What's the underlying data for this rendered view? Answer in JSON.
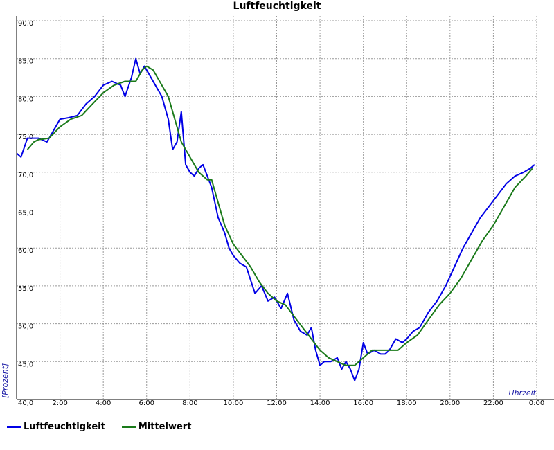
{
  "chart_data": {
    "type": "line",
    "title": "Luftfeuchtigkeit",
    "ylabel": "[Prozent]",
    "xlabel": "Uhrzeit",
    "xlim": [
      0,
      24
    ],
    "ylim": [
      40,
      90
    ],
    "yticks": [
      40,
      45,
      50,
      55,
      60,
      65,
      70,
      75,
      80,
      85,
      90
    ],
    "ytick_labels": [
      "40,0",
      "45,0",
      "50,0",
      "55,0",
      "60,0",
      "65,0",
      "70,0",
      "75,0",
      "80,0",
      "85,0",
      "90,0"
    ],
    "xticks": [
      2,
      4,
      6,
      8,
      10,
      12,
      14,
      16,
      18,
      20,
      22,
      24
    ],
    "xtick_labels": [
      "2:00",
      "4:00",
      "6:00",
      "8:00",
      "10:00",
      "12:00",
      "14:00",
      "16:00",
      "18:00",
      "20:00",
      "22:00",
      "0:00"
    ],
    "grid": true,
    "legend": "bottom-left",
    "colors": {
      "luftfeuchtigkeit": "#0000e6",
      "mittelwert": "#1a7a1a",
      "grid": "#999999",
      "axis_label": "#1a1aa6"
    },
    "series": [
      {
        "name": "Luftfeuchtigkeit",
        "x": [
          0,
          0.2,
          0.5,
          1.0,
          1.4,
          1.6,
          2.0,
          2.4,
          2.8,
          3.2,
          3.6,
          4.0,
          4.4,
          4.8,
          5.0,
          5.3,
          5.5,
          5.7,
          5.9,
          6.1,
          6.4,
          6.7,
          7.0,
          7.2,
          7.4,
          7.6,
          7.8,
          8.0,
          8.2,
          8.4,
          8.6,
          9.0,
          9.3,
          9.6,
          9.8,
          10.0,
          10.3,
          10.6,
          11.0,
          11.3,
          11.6,
          11.9,
          12.2,
          12.5,
          12.8,
          13.1,
          13.4,
          13.6,
          13.8,
          14.0,
          14.2,
          14.5,
          14.8,
          15.0,
          15.2,
          15.4,
          15.6,
          15.8,
          16.0,
          16.2,
          16.5,
          16.8,
          17.0,
          17.2,
          17.5,
          17.8,
          18.0,
          18.3,
          18.6,
          19.0,
          19.4,
          19.8,
          20.2,
          20.6,
          21.0,
          21.4,
          21.8,
          22.2,
          22.6,
          23.0,
          23.4,
          23.7,
          23.9
        ],
        "y": [
          72.5,
          72.0,
          74.5,
          74.5,
          74.0,
          75.0,
          77.0,
          77.2,
          77.5,
          79.0,
          80.0,
          81.5,
          82.0,
          81.5,
          80.0,
          82.5,
          85.0,
          83.0,
          84.0,
          83.0,
          81.5,
          80.0,
          77.0,
          73.0,
          74.0,
          78.0,
          71.0,
          70.0,
          69.5,
          70.5,
          71.0,
          68.0,
          64.0,
          62.0,
          60.0,
          59.0,
          58.0,
          57.5,
          54.0,
          55.0,
          53.0,
          53.5,
          52.0,
          54.0,
          50.5,
          49.0,
          48.5,
          49.5,
          46.5,
          44.5,
          45.0,
          45.0,
          45.5,
          44.0,
          45.0,
          44.0,
          42.5,
          44.0,
          47.5,
          46.0,
          46.5,
          46.0,
          46.0,
          46.5,
          48.0,
          47.5,
          48.0,
          49.0,
          49.5,
          51.5,
          53.0,
          55.0,
          57.5,
          60.0,
          62.0,
          64.0,
          65.5,
          67.0,
          68.5,
          69.5,
          70.0,
          70.5,
          71.0
        ]
      },
      {
        "name": "Mittelwert",
        "x": [
          0.5,
          0.8,
          1.0,
          1.5,
          2.0,
          2.5,
          3.0,
          3.5,
          4.0,
          4.5,
          5.0,
          5.5,
          5.8,
          6.0,
          6.3,
          6.6,
          7.0,
          7.3,
          7.6,
          8.0,
          8.4,
          8.8,
          9.0,
          9.3,
          9.6,
          10.0,
          10.4,
          10.8,
          11.2,
          11.6,
          12.0,
          12.4,
          12.8,
          13.2,
          13.6,
          14.0,
          14.4,
          14.8,
          15.2,
          15.6,
          16.0,
          16.4,
          16.8,
          17.2,
          17.6,
          18.0,
          18.5,
          19.0,
          19.5,
          20.0,
          20.5,
          21.0,
          21.5,
          22.0,
          22.5,
          23.0,
          23.5,
          23.8
        ],
        "y": [
          73.0,
          74.0,
          74.3,
          74.5,
          76.0,
          77.0,
          77.5,
          79.0,
          80.5,
          81.5,
          82.0,
          82.0,
          83.5,
          84.0,
          83.5,
          82.0,
          80.0,
          77.0,
          74.0,
          72.0,
          70.0,
          69.0,
          69.0,
          66.0,
          63.0,
          60.5,
          59.0,
          57.5,
          55.5,
          54.0,
          53.0,
          52.5,
          51.0,
          49.5,
          48.0,
          46.5,
          45.5,
          45.0,
          44.5,
          44.5,
          45.5,
          46.5,
          46.5,
          46.5,
          46.5,
          47.5,
          48.5,
          50.5,
          52.5,
          54.0,
          56.0,
          58.5,
          61.0,
          63.0,
          65.5,
          68.0,
          69.5,
          70.5
        ]
      }
    ]
  }
}
